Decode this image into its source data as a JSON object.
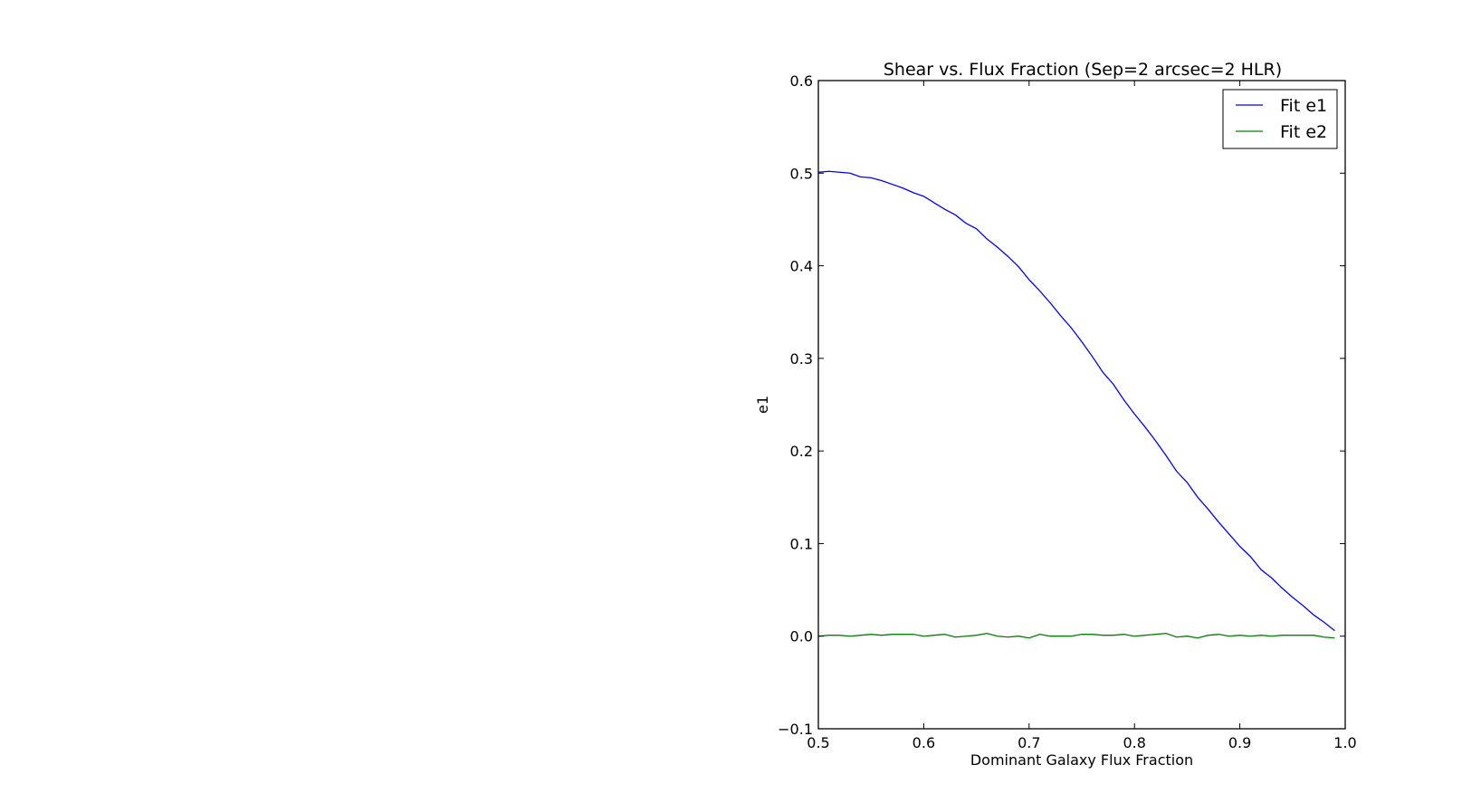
{
  "chart_data": {
    "type": "line",
    "title": "Shear vs. Flux Fraction (Sep=2 arcsec=2 HLR)",
    "xlabel": "Dominant Galaxy Flux Fraction",
    "ylabel": "e1",
    "xlim": [
      0.5,
      1.0
    ],
    "ylim": [
      -0.1,
      0.6
    ],
    "x_ticks": [
      "0.5",
      "0.6",
      "0.7",
      "0.8",
      "0.9",
      "1.0"
    ],
    "y_ticks": [
      "−0.1",
      "0.0",
      "0.1",
      "0.2",
      "0.3",
      "0.4",
      "0.5",
      "0.6"
    ],
    "x_tick_values": [
      0.5,
      0.6,
      0.7,
      0.8,
      0.9,
      1.0
    ],
    "y_tick_values": [
      -0.1,
      0.0,
      0.1,
      0.2,
      0.3,
      0.4,
      0.5,
      0.6
    ],
    "legend_position": "top-right",
    "grid": false,
    "x": [
      0.5,
      0.51,
      0.52,
      0.53,
      0.54,
      0.55,
      0.56,
      0.57,
      0.58,
      0.59,
      0.6,
      0.61,
      0.62,
      0.63,
      0.64,
      0.65,
      0.66,
      0.67,
      0.68,
      0.69,
      0.7,
      0.71,
      0.72,
      0.73,
      0.74,
      0.75,
      0.76,
      0.77,
      0.78,
      0.79,
      0.8,
      0.81,
      0.82,
      0.83,
      0.84,
      0.85,
      0.86,
      0.87,
      0.88,
      0.89,
      0.9,
      0.91,
      0.92,
      0.93,
      0.94,
      0.95,
      0.96,
      0.97,
      0.98,
      0.99
    ],
    "series": [
      {
        "name": "Fit e1",
        "color": "#0000ff",
        "values": [
          0.501,
          0.502,
          0.501,
          0.5,
          0.496,
          0.495,
          0.492,
          0.488,
          0.484,
          0.479,
          0.475,
          0.468,
          0.461,
          0.455,
          0.446,
          0.44,
          0.429,
          0.42,
          0.41,
          0.399,
          0.385,
          0.373,
          0.36,
          0.346,
          0.333,
          0.318,
          0.302,
          0.285,
          0.272,
          0.255,
          0.24,
          0.226,
          0.211,
          0.195,
          0.178,
          0.166,
          0.15,
          0.137,
          0.123,
          0.11,
          0.097,
          0.086,
          0.072,
          0.063,
          0.052,
          0.042,
          0.033,
          0.023,
          0.015,
          0.006
        ]
      },
      {
        "name": "Fit e2",
        "color": "#008000",
        "values": [
          0.0,
          0.001,
          0.001,
          0.0,
          0.001,
          0.002,
          0.001,
          0.002,
          0.002,
          0.002,
          0.0,
          0.001,
          0.002,
          -0.001,
          0.0,
          0.001,
          0.003,
          0.0,
          -0.001,
          0.0,
          -0.002,
          0.002,
          0.0,
          0.0,
          0.0,
          0.002,
          0.002,
          0.001,
          0.001,
          0.002,
          0.0,
          0.001,
          0.002,
          0.003,
          -0.001,
          0.0,
          -0.002,
          0.001,
          0.002,
          0.0,
          0.001,
          0.0,
          0.001,
          0.0,
          0.001,
          0.001,
          0.001,
          0.001,
          -0.001,
          -0.002
        ]
      }
    ]
  }
}
